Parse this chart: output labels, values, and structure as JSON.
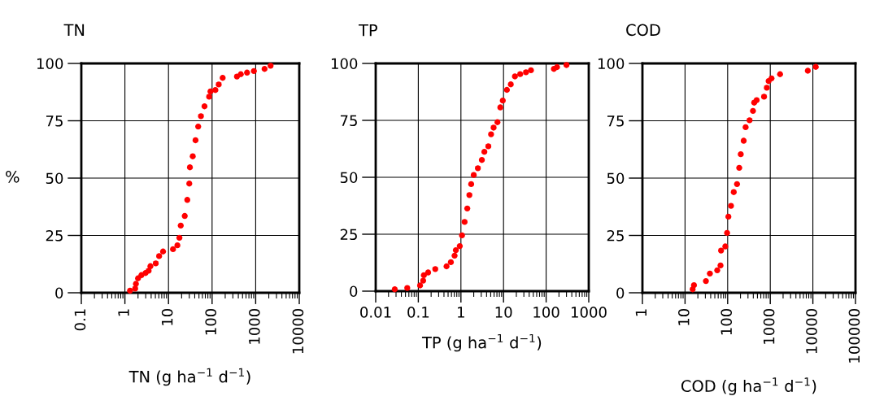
{
  "chart_data": [
    {
      "type": "scatter",
      "title": "TN",
      "ylabel": "%",
      "xlabel": "TN (g ha$^{−1}$ d$^{−1}$)",
      "log": "x",
      "grid": true,
      "marker": "circle",
      "xlim": [
        0.1,
        10000
      ],
      "xticks": [
        0.1,
        1,
        10,
        100,
        1000,
        10000
      ],
      "ylim": [
        0,
        100
      ],
      "yticks": [
        0,
        25,
        50,
        75,
        100
      ],
      "series": [
        {
          "color": "#ff0000",
          "x": [
            1.31,
            1.72,
            1.79,
            2.0,
            2.39,
            2.97,
            3.5,
            3.85,
            5.1,
            6.1,
            7.5,
            12.7,
            16,
            17.8,
            19.1,
            23.6,
            27,
            30,
            31,
            36,
            41.7,
            48,
            55.5,
            67,
            85.6,
            92,
            119,
            142,
            175,
            372,
            456,
            634,
            910,
            1600,
            2200
          ],
          "values": [
            0.9,
            1.8,
            3.9,
            6.3,
            7.7,
            8.6,
            9.6,
            11.6,
            12.8,
            16,
            18,
            19,
            20.7,
            24,
            29.3,
            33.5,
            40.5,
            47.6,
            54.7,
            59.5,
            66.5,
            72.5,
            77,
            81.3,
            85.5,
            87.8,
            88.4,
            90.8,
            93.7,
            94.3,
            95.3,
            96,
            96.7,
            97.6,
            99
          ]
        }
      ]
    },
    {
      "type": "scatter",
      "title": "TP",
      "xlabel": "TP (g ha$^{−1}$ d$^{−1}$)",
      "log": "x",
      "grid": true,
      "marker": "circle",
      "xlim": [
        0.01,
        1000
      ],
      "xticks": [
        0.01,
        0.1,
        1,
        10,
        100,
        1000
      ],
      "ylim": [
        0,
        100
      ],
      "yticks": [
        0,
        25,
        50,
        75,
        100
      ],
      "series": [
        {
          "color": "#ff0000",
          "x": [
            0.028,
            0.055,
            0.11,
            0.13,
            0.135,
            0.17,
            0.25,
            0.46,
            0.58,
            0.71,
            0.76,
            0.94,
            1.06,
            1.22,
            1.41,
            1.58,
            1.74,
            2.0,
            2.5,
            3.1,
            3.55,
            4.4,
            5.1,
            5.85,
            7.2,
            8.4,
            9.6,
            12,
            14.8,
            18.5,
            24.6,
            33.6,
            44,
            152,
            180,
            300
          ],
          "values": [
            0.8,
            1.4,
            2.5,
            4.6,
            7,
            8.2,
            9.7,
            10.9,
            12.7,
            15.6,
            18,
            19.8,
            24.5,
            30.4,
            36.3,
            42.2,
            47,
            51,
            54,
            57.6,
            61.2,
            63.6,
            68.9,
            71.8,
            74.2,
            80.7,
            83.7,
            88.4,
            90.8,
            94.3,
            95.3,
            96.1,
            97,
            97.6,
            98.4,
            99.3
          ]
        }
      ]
    },
    {
      "type": "scatter",
      "title": "COD",
      "xlabel": "COD (g ha$^{−1}$ d$^{−1}$)",
      "log": "x",
      "grid": true,
      "marker": "circle",
      "xlim": [
        1,
        100000
      ],
      "xticks": [
        1,
        10,
        100,
        1000,
        10000,
        100000
      ],
      "ylim": [
        0,
        100
      ],
      "yticks": [
        0,
        25,
        50,
        75,
        100
      ],
      "series": [
        {
          "color": "#ff0000",
          "x": [
            15.1,
            16.2,
            30.9,
            38.3,
            57,
            68,
            70,
            88,
            97,
            104,
            120,
            139,
            166,
            187,
            203,
            238,
            264,
            327,
            393,
            420,
            480,
            715,
            830,
            915,
            1070,
            1700,
            7600,
            11700
          ],
          "values": [
            1.5,
            3.3,
            5.1,
            8.4,
            9.8,
            11.9,
            18.4,
            20.2,
            26.1,
            33.2,
            37.9,
            43.9,
            47.4,
            54.5,
            60.4,
            66.3,
            72.2,
            75.2,
            79.3,
            82.9,
            84,
            85.5,
            89.4,
            92.3,
            93.5,
            95.3,
            96.8,
            98.5
          ]
        }
      ]
    }
  ]
}
